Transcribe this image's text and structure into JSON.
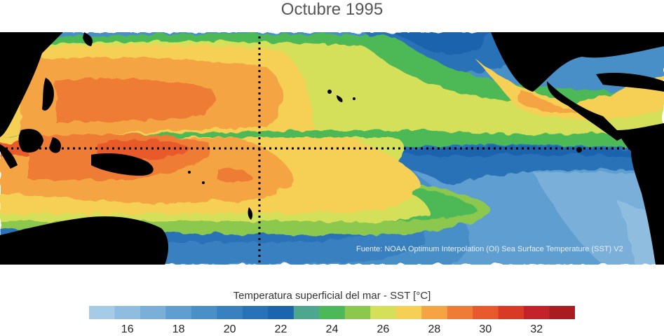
{
  "title": "Octubre 1995",
  "source_text": "Fuente: NOAA Optimum Interpolation (OI) Sea Surface Temperature (SST) V2",
  "legend": {
    "label": "Temperatura superficial del mar - SST  [°C]",
    "colors": [
      "#a6cbe6",
      "#8fbde0",
      "#79afd9",
      "#5f9ed0",
      "#4a8fc7",
      "#3980bf",
      "#2a72b7",
      "#1c64ad",
      "#4fa68e",
      "#4db857",
      "#8cc84e",
      "#d4df5a",
      "#f6cf55",
      "#f4a442",
      "#ee7c36",
      "#e85a2b",
      "#d83a26",
      "#c52128",
      "#a91d22"
    ],
    "ticks": [
      "16",
      "18",
      "20",
      "22",
      "24",
      "26",
      "28",
      "30",
      "32"
    ]
  },
  "map": {
    "land_color": "#000000",
    "grid_color": "#000000"
  }
}
